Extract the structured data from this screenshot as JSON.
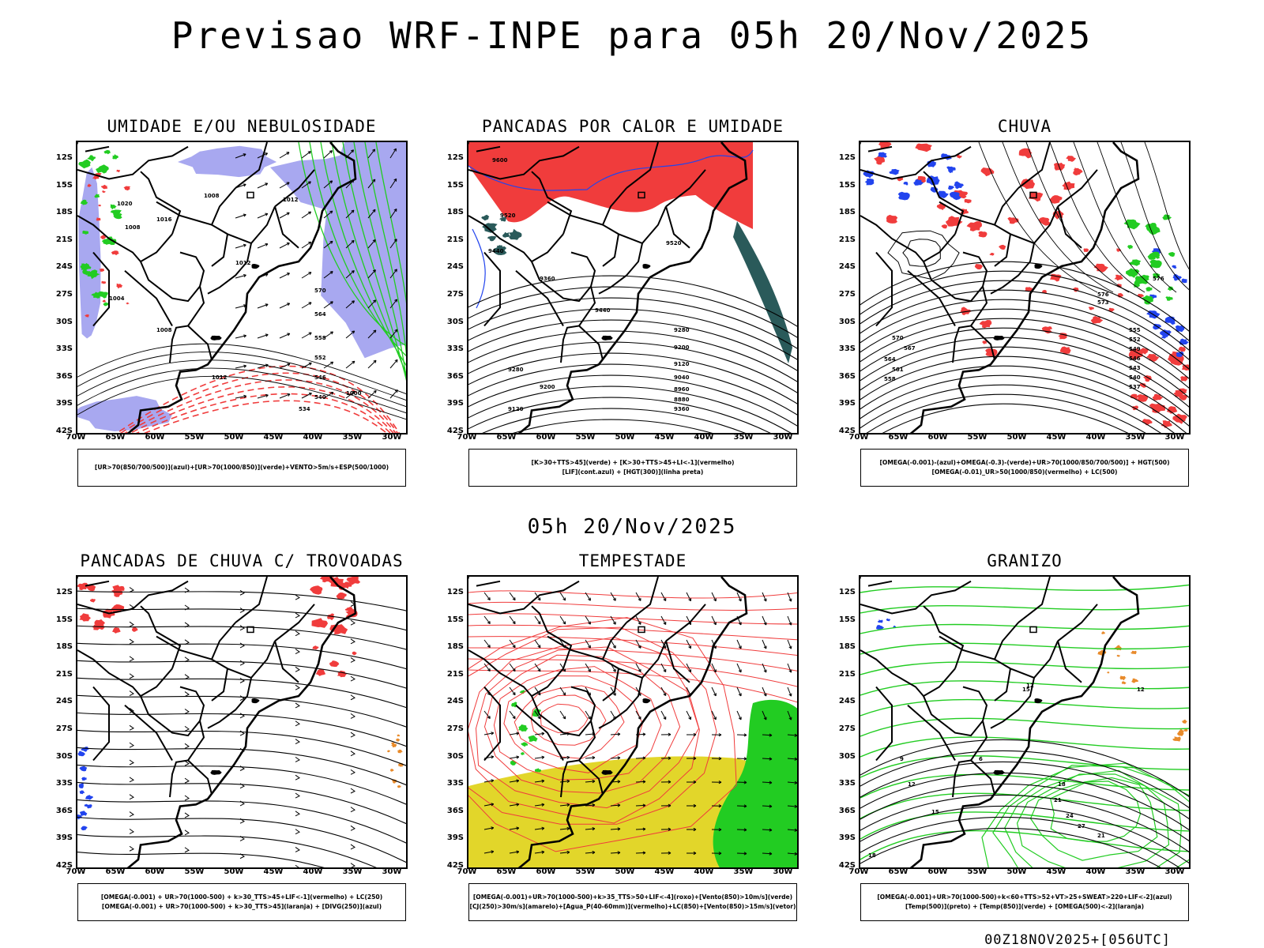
{
  "title": "Previsao WRF-INPE  para 05h 20/Nov/2025",
  "mid_title": "05h 20/Nov/2025",
  "footer": "00Z18NOV2025+[056UTC]",
  "axes": {
    "lat_labels": [
      "12S",
      "15S",
      "18S",
      "21S",
      "24S",
      "27S",
      "30S",
      "33S",
      "36S",
      "39S",
      "42S"
    ],
    "lon_labels": [
      "70W",
      "65W",
      "60W",
      "55W",
      "50W",
      "45W",
      "40W",
      "35W",
      "30W"
    ]
  },
  "colors": {
    "red": "#f03c3c",
    "green": "#22cc22",
    "blue": "#2244ee",
    "lavender": "#a8a8f0",
    "yellow": "#e2d62a",
    "teal": "#2a5a5a",
    "orange": "#e88a2a"
  },
  "panels": [
    {
      "title": "UMIDADE E/OU NEBULOSIDADE",
      "legend": [
        "[UR>70(850/700/500)](azul)+[UR>70(1000/850)](verde)+VENTO>5m/s+ESP(500/1000)"
      ],
      "contour_labels": [
        "1008",
        "1008",
        "1012",
        "1012",
        "1004",
        "1008",
        "1012",
        "570",
        "564",
        "558",
        "552",
        "546",
        "540",
        "534",
        "1000",
        "1016",
        "1020"
      ]
    },
    {
      "title": "PANCADAS POR CALOR E UMIDADE",
      "legend": [
        "[K>30+TTS>45](verde) + [K>30+TTS>45+LI<-1](vermelho)",
        "[LIF](cont.azul) + [HGT(300)](linha preta)"
      ],
      "contour_labels": [
        "9600",
        "9520",
        "9440",
        "9520",
        "9440",
        "9360",
        "9280",
        "9200",
        "9120",
        "9040",
        "8960",
        "8880",
        "9360",
        "9280",
        "9200",
        "9120"
      ]
    },
    {
      "title": "CHUVA",
      "legend": [
        "[OMEGA(-0.001)-(azul)+OMEGA(-0.3)-(verde)+UR>70(1000/850/700/500)] + HGT(500)",
        "[OMEGA(-0.01)_UR>50(1000/850)(vermelho) + LC(500)"
      ],
      "contour_labels": [
        "576",
        "573",
        "570",
        "567",
        "564",
        "561",
        "558",
        "555",
        "552",
        "549",
        "546",
        "543",
        "540",
        "537",
        "576"
      ]
    },
    {
      "title": "PANCADAS DE CHUVA C/ TROVOADAS",
      "legend": [
        "[OMEGA(-0.001) + UR>70(1000-500) + k>30_TTS>45+LIF<-1](vermelho) + LC(250)",
        "[OMEGA(-0.001) + UR>70(1000-500) + k>30_TTS>45](laranja) + [DIVG(250)](azul)"
      ],
      "contour_labels": []
    },
    {
      "title": "TEMPESTADE",
      "legend": [
        "[OMEGA(-0.001)+UR>70(1000-500)+k>35_TTS>50+LIF<-4](roxo)+[Vento(850)>10m/s](verde)",
        "[CJ(250)>30m/s](amarelo)+[Agua_P(40-60mm)](vermelho)+LC(850)+[Vento(850)>15m/s](vetor)"
      ],
      "contour_labels": []
    },
    {
      "title": "GRANIZO",
      "legend": [
        "[OMEGA(-0.001)+UR>70(1000-500)+k<60+TTS>52+VT>25+SWEAT>220+LIF<-2](azul)",
        "[Temp(500)](preto) + [Temp(850)](verde) + [OMEGA(500)<-2](laranja)"
      ],
      "contour_labels": [
        "12",
        "9",
        "6",
        "12",
        "15",
        "18",
        "21",
        "24",
        "27",
        "21",
        "18",
        "15",
        "12"
      ]
    }
  ]
}
